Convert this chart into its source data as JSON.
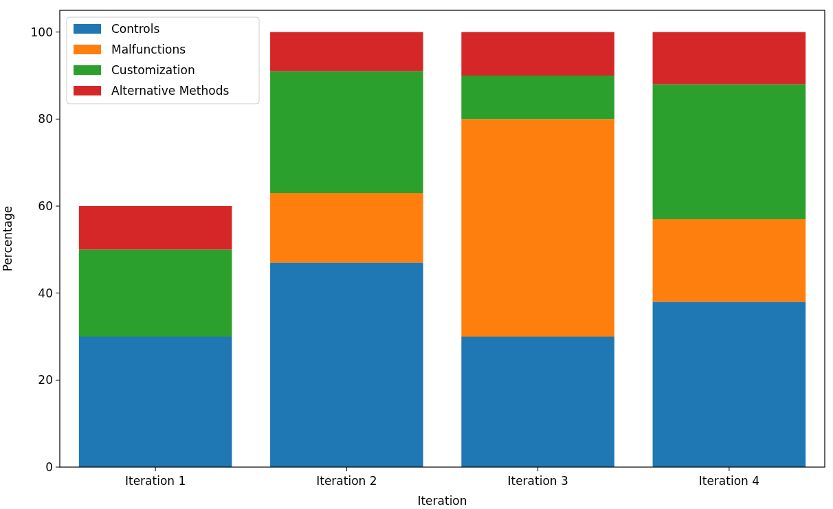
{
  "chart_data": {
    "type": "bar",
    "stacked": true,
    "xlabel": "Iteration",
    "ylabel": "Percentage",
    "categories": [
      "Iteration 1",
      "Iteration 2",
      "Iteration 3",
      "Iteration 4"
    ],
    "series": [
      {
        "name": "Controls",
        "color": "#1f77b4",
        "values": [
          30,
          47,
          30,
          38
        ]
      },
      {
        "name": "Malfunctions",
        "color": "#ff7f0e",
        "values": [
          0,
          16,
          50,
          19
        ]
      },
      {
        "name": "Customization",
        "color": "#2ca02c",
        "values": [
          20,
          28,
          10,
          31
        ]
      },
      {
        "name": "Alternative Methods",
        "color": "#d62728",
        "values": [
          10,
          9,
          10,
          12
        ]
      }
    ],
    "ylim": [
      0,
      105
    ],
    "yticks": [
      0,
      20,
      40,
      60,
      80,
      100
    ],
    "legend": "top left"
  }
}
